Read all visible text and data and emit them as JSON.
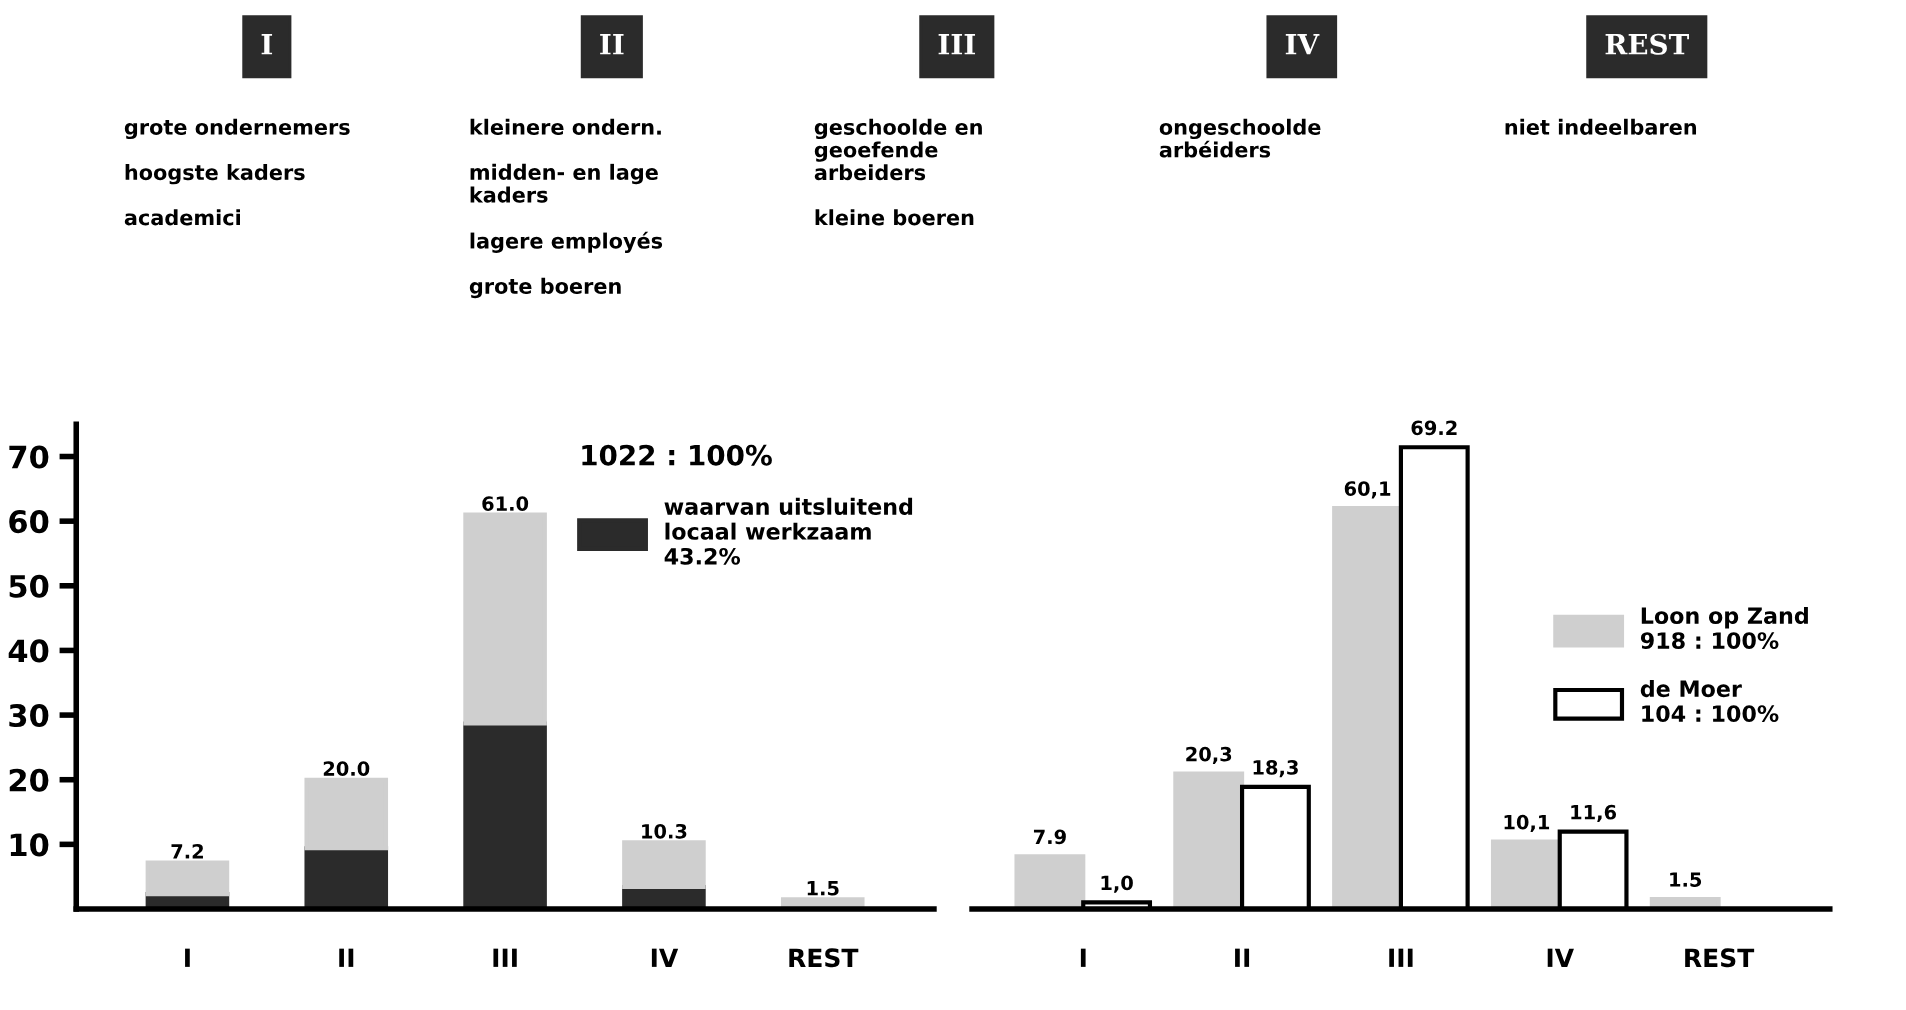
{
  "chart_data": [
    {
      "type": "other",
      "categories": [
        "I",
        "II",
        "III",
        "IV",
        "REST"
      ],
      "annotations": [
        "grote ondernemers\n\nhoogste kaders\n\nacademici",
        "kleinere ondern.\n\nmidden- en lage\nkaders\n\nlagere employés\n\ngrote boeren",
        "geschoolde en\ngeoefende\narbeiders\n\nkleine boeren",
        "ongeschoolde\narbéiders",
        "niet indeelbaren"
      ]
    },
    {
      "type": "bar",
      "stacked": true,
      "categories": [
        "I",
        "II",
        "III",
        "IV",
        "REST"
      ],
      "series": [
        {
          "name": "waarvan uitsluitend\nlocaal werkzaam\n43.2%",
          "color": "#2b2b2b",
          "values": [
            2.3,
            9.4,
            28.7,
            3.4,
            0
          ]
        },
        {
          "color": "#cfcfcf",
          "values": [
            4.9,
            10.6,
            32.3,
            6.9,
            1.5
          ]
        }
      ],
      "totals": [
        "7.2",
        "20.0",
        "61.0",
        "10.3",
        "1.5"
      ],
      "legend_title": "1022 : 100%",
      "legend": "top right",
      "ylim": [
        0,
        75
      ],
      "yticks": [
        10,
        20,
        30,
        40,
        50,
        60,
        70
      ],
      "grid": false
    },
    {
      "type": "bar",
      "categories": [
        "I",
        "II",
        "III",
        "IV",
        "REST"
      ],
      "series": [
        {
          "name": "Loon op Zand\n918 : 100%",
          "color": "#cfcfcf",
          "values": [
            7.9,
            20.3,
            60.1,
            10.1,
            1.5
          ],
          "value_labels": [
            "7.9",
            "20,3",
            "60,1",
            "10,1",
            "1.5"
          ]
        },
        {
          "name": "de Moer\n104 : 100%",
          "color": "#ffffff",
          "values": [
            1.0,
            18.3,
            69.2,
            11.6,
            null
          ],
          "value_labels": [
            "1,0",
            "18,3",
            "69.2",
            "11,6",
            null
          ]
        }
      ],
      "legend": "right",
      "grid": false
    }
  ]
}
